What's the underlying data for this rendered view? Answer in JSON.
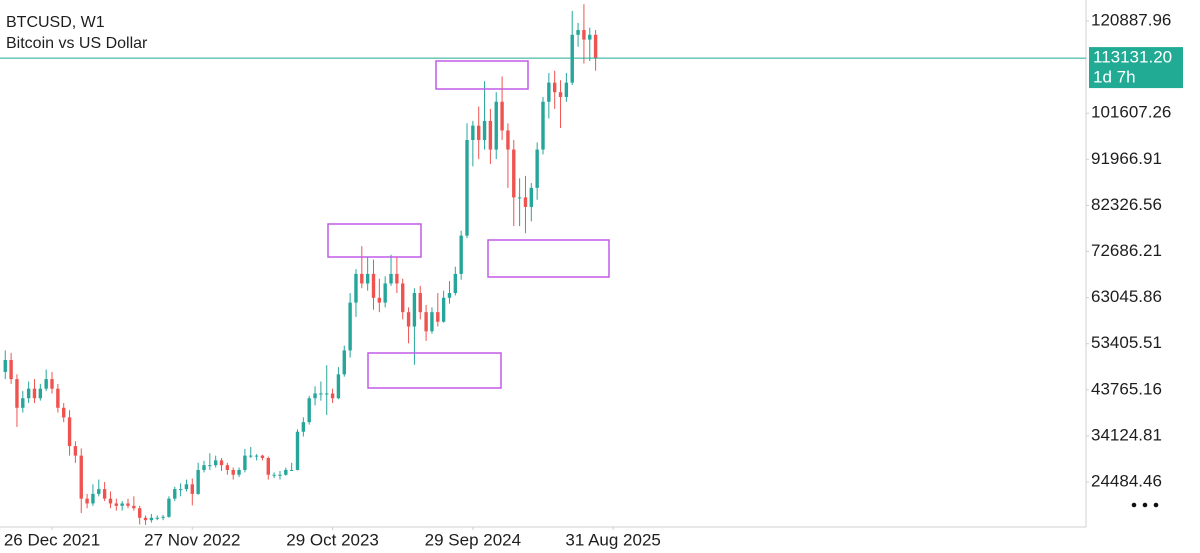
{
  "header": {
    "symbol": "BTCUSD, W1",
    "description": "Bitcoin vs US Dollar"
  },
  "chart_data": {
    "type": "candlestick",
    "up_color": "#26a69a",
    "down_color": "#ef5350",
    "candles": [
      [
        47500,
        52000,
        46000,
        50000
      ],
      [
        50000,
        51500,
        45000,
        46000
      ],
      [
        46000,
        47000,
        36000,
        40000
      ],
      [
        40000,
        43500,
        39000,
        42000
      ],
      [
        42000,
        45500,
        41000,
        44000
      ],
      [
        44000,
        46000,
        41000,
        42000
      ],
      [
        42000,
        45000,
        41500,
        44000
      ],
      [
        44000,
        48000,
        43500,
        46000
      ],
      [
        46000,
        47500,
        43000,
        44000
      ],
      [
        44000,
        45000,
        39000,
        40000
      ],
      [
        40000,
        41000,
        37000,
        38000
      ],
      [
        38000,
        39500,
        30000,
        32000
      ],
      [
        32000,
        33000,
        28500,
        30000
      ],
      [
        30000,
        31500,
        18000,
        21000
      ],
      [
        21000,
        22000,
        19000,
        20000
      ],
      [
        20000,
        24000,
        19500,
        22000
      ],
      [
        22000,
        25000,
        21500,
        23000
      ],
      [
        23000,
        24500,
        20500,
        21000
      ],
      [
        21000,
        22500,
        19000,
        20000
      ],
      [
        20000,
        21000,
        18500,
        19500
      ],
      [
        19500,
        20500,
        18500,
        20000
      ],
      [
        20000,
        21000,
        19000,
        19500
      ],
      [
        19500,
        21500,
        18500,
        19000
      ],
      [
        19000,
        19500,
        15600,
        17000
      ],
      [
        17000,
        17500,
        15500,
        16500
      ],
      [
        16500,
        17800,
        16000,
        17000
      ],
      [
        17000,
        17500,
        16500,
        17000
      ],
      [
        17000,
        17600,
        16500,
        17200
      ],
      [
        17200,
        21500,
        17000,
        21000
      ],
      [
        21000,
        23500,
        20500,
        23000
      ],
      [
        23000,
        24200,
        21500,
        23000
      ],
      [
        23000,
        25000,
        22500,
        24000
      ],
      [
        24000,
        25200,
        19600,
        22000
      ],
      [
        22000,
        28500,
        21800,
        27000
      ],
      [
        27000,
        28900,
        26500,
        28000
      ],
      [
        28000,
        30500,
        27000,
        28000
      ],
      [
        28000,
        30000,
        27500,
        29000
      ],
      [
        29000,
        29500,
        26800,
        28000
      ],
      [
        28000,
        28500,
        26000,
        27000
      ],
      [
        27000,
        27500,
        25000,
        26000
      ],
      [
        26000,
        27500,
        25500,
        27000
      ],
      [
        27000,
        31400,
        26500,
        30000
      ],
      [
        30000,
        31800,
        29500,
        30000
      ],
      [
        30000,
        30300,
        29000,
        30000
      ],
      [
        30000,
        30200,
        29000,
        29500
      ],
      [
        29500,
        29800,
        25000,
        26000
      ],
      [
        26000,
        26500,
        25300,
        26000
      ],
      [
        26000,
        26800,
        25000,
        26000
      ],
      [
        26000,
        27500,
        25800,
        27000
      ],
      [
        27000,
        28500,
        26800,
        27000
      ],
      [
        27000,
        35500,
        26900,
        35000
      ],
      [
        35000,
        38000,
        34000,
        37000
      ],
      [
        37000,
        42500,
        36500,
        42000
      ],
      [
        42000,
        44500,
        40500,
        43000
      ],
      [
        43000,
        45500,
        41500,
        43000
      ],
      [
        43000,
        48900,
        38500,
        43000
      ],
      [
        43000,
        44000,
        41000,
        42000
      ],
      [
        42000,
        48500,
        41800,
        47000
      ],
      [
        47000,
        53000,
        46500,
        52000
      ],
      [
        52000,
        64000,
        50500,
        62000
      ],
      [
        62000,
        69000,
        59000,
        68000
      ],
      [
        68000,
        73800,
        65000,
        66000
      ],
      [
        66000,
        71500,
        64500,
        68000
      ],
      [
        68000,
        71000,
        60500,
        63000
      ],
      [
        63000,
        67000,
        60000,
        62000
      ],
      [
        62000,
        67500,
        61000,
        66000
      ],
      [
        66000,
        72000,
        65500,
        68000
      ],
      [
        68000,
        71500,
        64000,
        66000
      ],
      [
        66000,
        67000,
        58500,
        60000
      ],
      [
        60000,
        61000,
        53500,
        57000
      ],
      [
        57000,
        65000,
        49000,
        64000
      ],
      [
        64000,
        65500,
        58500,
        60000
      ],
      [
        60000,
        61500,
        54000,
        56000
      ],
      [
        56000,
        61000,
        55500,
        60000
      ],
      [
        60000,
        64000,
        57000,
        58000
      ],
      [
        58000,
        64500,
        57800,
        63000
      ],
      [
        63000,
        66500,
        61800,
        64000
      ],
      [
        64000,
        69500,
        63500,
        68000
      ],
      [
        68000,
        77000,
        66800,
        76000
      ],
      [
        76000,
        99500,
        75500,
        96000
      ],
      [
        96000,
        100000,
        90500,
        99000
      ],
      [
        99000,
        103000,
        92000,
        96000
      ],
      [
        96000,
        108300,
        94000,
        100000
      ],
      [
        100000,
        102500,
        91000,
        94000
      ],
      [
        94000,
        106000,
        92000,
        104000
      ],
      [
        104000,
        109300,
        96000,
        98000
      ],
      [
        98000,
        99500,
        86000,
        94000
      ],
      [
        94000,
        96000,
        78000,
        84000
      ],
      [
        84000,
        88000,
        78000,
        84000
      ],
      [
        84000,
        88500,
        76500,
        82000
      ],
      [
        82000,
        87000,
        79000,
        86000
      ],
      [
        86000,
        95500,
        83500,
        94000
      ],
      [
        94000,
        105000,
        93000,
        104000
      ],
      [
        104000,
        110000,
        100500,
        108000
      ],
      [
        108000,
        110500,
        102500,
        106000
      ],
      [
        106000,
        108500,
        98500,
        105000
      ],
      [
        105000,
        110000,
        104000,
        108000
      ],
      [
        108000,
        123000,
        107500,
        118000
      ],
      [
        118000,
        120500,
        115500,
        119000
      ],
      [
        119000,
        124400,
        112000,
        117000
      ],
      [
        117000,
        119500,
        112500,
        118000
      ],
      [
        118000,
        119000,
        110500,
        113131.2
      ]
    ],
    "xlim": [
      -0.9,
      184.9
    ],
    "xticks": [
      {
        "value": 8,
        "label": "26 Dec 2021"
      },
      {
        "value": 32,
        "label": "27 Nov 2022"
      },
      {
        "value": 56,
        "label": "29 Oct 2023"
      },
      {
        "value": 80,
        "label": "29 Sep 2024"
      },
      {
        "value": 104,
        "label": "31 Aug 2025"
      }
    ],
    "ylim": [
      15074,
      125279
    ],
    "yticks": [
      24484.46,
      34124.81,
      43765.16,
      53405.51,
      63045.86,
      72686.21,
      82326.56,
      91966.91,
      101607.26,
      120887.96
    ],
    "current_price": {
      "value": 113131.2,
      "label": "113131.20",
      "countdown": "1d 7h",
      "color": "#22ab94"
    }
  }
}
